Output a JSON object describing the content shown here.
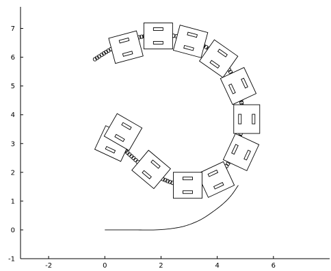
{
  "chart_data": {
    "type": "line",
    "title": "",
    "xlabel": "",
    "ylabel": "",
    "xlim": [
      -3,
      8
    ],
    "ylim": [
      -1,
      7.75
    ],
    "x_ticks": [
      -2,
      0,
      2,
      4,
      6
    ],
    "y_ticks": [
      -1,
      0,
      1,
      2,
      3,
      4,
      5,
      6,
      7
    ],
    "grid": false,
    "legend": "none",
    "series": [
      {
        "role": "reference-path",
        "style": "solid-line",
        "color": "#000000",
        "points": [
          [
            0,
            0
          ],
          [
            1,
            0
          ],
          [
            1.8,
            0
          ],
          [
            2.4,
            0.05
          ],
          [
            2.9,
            0.15
          ],
          [
            3.4,
            0.35
          ],
          [
            3.8,
            0.6
          ],
          [
            4.2,
            0.9
          ],
          [
            4.5,
            1.2
          ],
          [
            4.75,
            1.55
          ]
        ]
      },
      {
        "role": "trajectory",
        "style": "open-circle-markers",
        "color": "#000000",
        "points": [
          [
            -0.35,
            5.93
          ],
          [
            0.2,
            6.27
          ],
          [
            0.8,
            6.57
          ],
          [
            1.5,
            6.74
          ],
          [
            2.4,
            6.75
          ],
          [
            3.2,
            6.55
          ],
          [
            3.9,
            6.15
          ],
          [
            4.4,
            5.6
          ],
          [
            4.75,
            4.9
          ],
          [
            4.9,
            4.05
          ],
          [
            4.8,
            3.2
          ],
          [
            4.5,
            2.5
          ],
          [
            4.1,
            1.95
          ],
          [
            3.5,
            1.6
          ],
          [
            2.8,
            1.55
          ],
          [
            2.1,
            1.75
          ],
          [
            1.5,
            2.1
          ],
          [
            0.9,
            2.6
          ],
          [
            0.5,
            2.95
          ],
          [
            0.15,
            3.05
          ],
          [
            0.0,
            3.15
          ],
          [
            0.05,
            3.3
          ],
          [
            0.3,
            3.38
          ],
          [
            0.5,
            3.35
          ]
        ]
      }
    ],
    "vehicles": [
      {
        "x": 0.75,
        "y": 6.35,
        "heading_deg": 15
      },
      {
        "x": 1.9,
        "y": 6.74,
        "heading_deg": 0
      },
      {
        "x": 3.05,
        "y": 6.55,
        "heading_deg": -15
      },
      {
        "x": 4.05,
        "y": 5.95,
        "heading_deg": -35
      },
      {
        "x": 4.75,
        "y": 5.0,
        "heading_deg": -65
      },
      {
        "x": 5.05,
        "y": 3.85,
        "heading_deg": -90
      },
      {
        "x": 4.85,
        "y": 2.7,
        "heading_deg": -115
      },
      {
        "x": 3.95,
        "y": 1.75,
        "heading_deg": -155
      },
      {
        "x": 2.95,
        "y": 1.55,
        "heading_deg": 180
      },
      {
        "x": 1.65,
        "y": 2.1,
        "heading_deg": 140
      },
      {
        "x": 0.3,
        "y": 3.0,
        "heading_deg": 155
      },
      {
        "x": 0.65,
        "y": 3.4,
        "heading_deg": 150
      }
    ]
  }
}
